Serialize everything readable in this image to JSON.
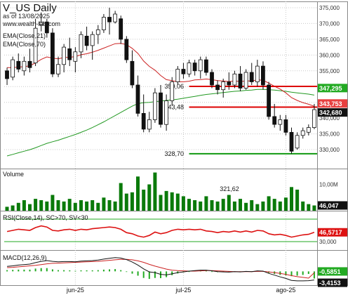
{
  "header": {
    "title": "V_US Daily",
    "asof": "as of 13/08/2025",
    "site": "www.wealth-lab.com"
  },
  "colors": {
    "ema21": "#cc2222",
    "ema70": "#229922",
    "candle_up": "#ffffff",
    "candle_down": "#111111",
    "level_red": "#dd0000",
    "level_green": "#119911",
    "volume": "#0a7a0a",
    "rsi": "#dd1111",
    "macd_line": "#111111",
    "signal_line": "#cc2222",
    "histogram": "#22aa22",
    "badge_ema21": "#e84040",
    "badge_ema70": "#22aa22",
    "badge_price": "#111111"
  },
  "chart_data": [
    {
      "type": "candlestick",
      "name": "price",
      "ylim": [
        324,
        377
      ],
      "yticks": [
        330,
        335,
        340,
        345,
        350,
        355,
        360,
        365,
        370,
        375
      ],
      "ytick_labels": [
        "330,000",
        "335,000",
        "340,000",
        "345,000",
        "350,000",
        "355,000",
        "360,000",
        "365,000",
        "370,000",
        "375,000"
      ],
      "indicators": [
        "EMA(Close,21)",
        "EMA(Close,70)"
      ],
      "last_values": {
        "ema70": "347,295",
        "ema21": "343,753",
        "close": "342,680"
      },
      "levels": [
        {
          "value": 350.06,
          "label": "350,06",
          "color": "red",
          "from_bar": 32
        },
        {
          "value": 343.48,
          "label": "343,48",
          "color": "red",
          "from_bar": 32
        },
        {
          "value": 328.7,
          "label": "328,70",
          "color": "green",
          "from_bar": 32
        }
      ],
      "bars": [
        {
          "o": 355.0,
          "h": 356.0,
          "l": 350.5,
          "c": 352.5
        },
        {
          "o": 353.0,
          "h": 359.5,
          "l": 352.0,
          "c": 358.5
        },
        {
          "o": 358.0,
          "h": 360.5,
          "l": 354.5,
          "c": 355.5
        },
        {
          "o": 355.0,
          "h": 359.5,
          "l": 353.5,
          "c": 358.0
        },
        {
          "o": 358.0,
          "h": 362.0,
          "l": 354.5,
          "c": 356.0
        },
        {
          "o": 357.5,
          "h": 371.5,
          "l": 356.5,
          "c": 368.5
        },
        {
          "o": 369.5,
          "h": 373.5,
          "l": 367.5,
          "c": 370.5
        },
        {
          "o": 370.5,
          "h": 371.5,
          "l": 365.5,
          "c": 367.0
        },
        {
          "o": 367.0,
          "h": 368.5,
          "l": 353.0,
          "c": 354.0
        },
        {
          "o": 354.0,
          "h": 359.5,
          "l": 353.0,
          "c": 357.0
        },
        {
          "o": 357.0,
          "h": 363.5,
          "l": 354.5,
          "c": 362.5
        },
        {
          "o": 362.0,
          "h": 365.5,
          "l": 356.5,
          "c": 358.5
        },
        {
          "o": 358.0,
          "h": 362.5,
          "l": 354.5,
          "c": 361.0
        },
        {
          "o": 361.0,
          "h": 367.5,
          "l": 359.0,
          "c": 366.5
        },
        {
          "o": 366.0,
          "h": 369.0,
          "l": 361.5,
          "c": 363.0
        },
        {
          "o": 363.0,
          "h": 367.5,
          "l": 358.5,
          "c": 366.5
        },
        {
          "o": 366.5,
          "h": 369.5,
          "l": 363.5,
          "c": 368.0
        },
        {
          "o": 368.0,
          "h": 373.0,
          "l": 367.0,
          "c": 372.0
        },
        {
          "o": 372.0,
          "h": 375.0,
          "l": 366.5,
          "c": 370.5
        },
        {
          "o": 370.5,
          "h": 374.0,
          "l": 370.0,
          "c": 373.0
        },
        {
          "o": 371.5,
          "h": 372.5,
          "l": 363.5,
          "c": 365.0
        },
        {
          "o": 365.0,
          "h": 366.0,
          "l": 357.5,
          "c": 358.5
        },
        {
          "o": 358.0,
          "h": 361.5,
          "l": 349.5,
          "c": 350.5
        },
        {
          "o": 350.5,
          "h": 353.5,
          "l": 340.5,
          "c": 341.5
        },
        {
          "o": 341.5,
          "h": 347.5,
          "l": 335.5,
          "c": 336.5
        },
        {
          "o": 336.5,
          "h": 342.0,
          "l": 335.5,
          "c": 339.5
        },
        {
          "o": 339.5,
          "h": 349.5,
          "l": 338.5,
          "c": 348.0
        },
        {
          "o": 348.0,
          "h": 350.5,
          "l": 337.0,
          "c": 338.0
        },
        {
          "o": 338.0,
          "h": 347.5,
          "l": 336.0,
          "c": 345.5
        },
        {
          "o": 345.5,
          "h": 353.0,
          "l": 344.0,
          "c": 351.5
        },
        {
          "o": 351.5,
          "h": 356.5,
          "l": 350.5,
          "c": 355.5
        },
        {
          "o": 355.5,
          "h": 357.5,
          "l": 352.5,
          "c": 354.0
        },
        {
          "o": 354.0,
          "h": 358.5,
          "l": 353.0,
          "c": 357.5
        },
        {
          "o": 357.5,
          "h": 358.5,
          "l": 353.5,
          "c": 355.0
        },
        {
          "o": 355.0,
          "h": 359.5,
          "l": 352.5,
          "c": 358.5
        },
        {
          "o": 358.5,
          "h": 359.5,
          "l": 353.5,
          "c": 354.5
        },
        {
          "o": 354.5,
          "h": 355.5,
          "l": 349.5,
          "c": 350.5
        },
        {
          "o": 350.5,
          "h": 352.0,
          "l": 347.5,
          "c": 349.0
        },
        {
          "o": 349.0,
          "h": 352.5,
          "l": 346.5,
          "c": 351.5
        },
        {
          "o": 351.5,
          "h": 354.5,
          "l": 349.0,
          "c": 350.5
        },
        {
          "o": 350.5,
          "h": 355.0,
          "l": 349.5,
          "c": 354.0
        },
        {
          "o": 354.0,
          "h": 356.5,
          "l": 348.5,
          "c": 349.5
        },
        {
          "o": 349.5,
          "h": 355.5,
          "l": 349.0,
          "c": 354.5
        },
        {
          "o": 354.5,
          "h": 357.5,
          "l": 350.5,
          "c": 351.5
        },
        {
          "o": 351.5,
          "h": 358.5,
          "l": 350.0,
          "c": 356.5
        },
        {
          "o": 356.5,
          "h": 358.0,
          "l": 349.0,
          "c": 350.5
        },
        {
          "o": 350.5,
          "h": 351.5,
          "l": 339.5,
          "c": 340.5
        },
        {
          "o": 340.5,
          "h": 344.5,
          "l": 337.0,
          "c": 338.0
        },
        {
          "o": 338.0,
          "h": 341.0,
          "l": 336.0,
          "c": 339.5
        },
        {
          "o": 339.5,
          "h": 341.0,
          "l": 334.5,
          "c": 335.5
        },
        {
          "o": 335.5,
          "h": 337.0,
          "l": 328.7,
          "c": 329.5
        },
        {
          "o": 330.5,
          "h": 335.5,
          "l": 330.0,
          "c": 334.5
        },
        {
          "o": 334.5,
          "h": 337.0,
          "l": 333.5,
          "c": 336.0
        },
        {
          "o": 335.5,
          "h": 338.0,
          "l": 334.5,
          "c": 337.0
        },
        {
          "o": 337.0,
          "h": 344.5,
          "l": 336.5,
          "c": 342.68
        }
      ],
      "ema21": [
        356.0,
        356.0,
        356.2,
        356.3,
        356.6,
        357.5,
        358.6,
        359.4,
        359.0,
        358.8,
        359.2,
        359.3,
        359.5,
        360.1,
        360.4,
        360.9,
        361.5,
        362.2,
        362.9,
        363.6,
        363.7,
        363.3,
        362.1,
        360.5,
        358.1,
        356.4,
        355.2,
        353.5,
        352.2,
        351.9,
        351.5,
        351.5,
        351.7,
        352.1,
        352.2,
        352.4,
        352.2,
        351.9,
        351.8,
        351.6,
        351.8,
        351.6,
        351.8,
        351.8,
        352.1,
        352.0,
        351.1,
        350.1,
        349.2,
        348.0,
        346.5,
        345.6,
        344.9,
        344.4,
        343.75
      ],
      "ema70": [
        328.0,
        328.5,
        329.0,
        329.5,
        330.0,
        330.6,
        331.3,
        332.0,
        332.5,
        333.0,
        333.6,
        334.2,
        334.8,
        335.5,
        336.2,
        337.0,
        337.9,
        338.8,
        339.8,
        340.8,
        341.8,
        342.8,
        343.8,
        344.6,
        344.9,
        345.0,
        345.2,
        345.4,
        345.6,
        345.8,
        346.0,
        346.3,
        346.6,
        346.9,
        347.2,
        347.5,
        347.7,
        347.9,
        348.1,
        348.3,
        348.5,
        348.6,
        348.8,
        348.9,
        349.1,
        349.1,
        349.0,
        348.9,
        348.7,
        348.5,
        348.2,
        348.0,
        347.8,
        347.6,
        347.3
      ]
    },
    {
      "type": "bar",
      "name": "volume",
      "title": "Volume",
      "unit": "M",
      "ylim": [
        0,
        16
      ],
      "ytick_labels": [
        "10,00M"
      ],
      "annotation": "321,62",
      "last_value": "46,047",
      "values": [
        1.5,
        2.0,
        3.0,
        4.0,
        2.5,
        4.5,
        4.0,
        3.5,
        6.0,
        4.0,
        3.5,
        4.5,
        3.0,
        4.0,
        3.5,
        4.0,
        3.0,
        5.0,
        4.0,
        3.5,
        10.5,
        6.5,
        7.0,
        13.0,
        8.0,
        10.0,
        14.5,
        6.0,
        7.5,
        7.0,
        6.5,
        5.5,
        4.5,
        4.0,
        3.5,
        5.5,
        4.0,
        3.5,
        4.5,
        6.0,
        3.5,
        4.5,
        3.0,
        4.0,
        2.5,
        3.5,
        5.5,
        4.5,
        3.5,
        5.0,
        9.0,
        8.0,
        3.5,
        2.5,
        2.0
      ]
    },
    {
      "type": "line",
      "name": "rsi",
      "title": "RSI(Close,14), SC>70, SV<30",
      "ylim": [
        15,
        85
      ],
      "levels": [
        70,
        30
      ],
      "ytick_labels": [
        "30,000"
      ],
      "last_value": "46,5717",
      "values": [
        48,
        50,
        52,
        51,
        50,
        55,
        58,
        56,
        50,
        49,
        51,
        52,
        50,
        52,
        51,
        53,
        54,
        55,
        56,
        55,
        52,
        46,
        44,
        40,
        38,
        41,
        47,
        44,
        46,
        50,
        52,
        51,
        52,
        51,
        52,
        49,
        48,
        46,
        48,
        47,
        49,
        47,
        49,
        47,
        50,
        49,
        44,
        42,
        43,
        41,
        38,
        40,
        42,
        43,
        46.57
      ]
    },
    {
      "type": "line",
      "name": "macd",
      "title": "MACD(12,26,9)",
      "ylim": [
        -5.5,
        8.5
      ],
      "last_values": {
        "signal": "-0,5851",
        "macd": "-3,4153"
      },
      "macd": [
        2.0,
        2.2,
        2.5,
        2.7,
        2.9,
        3.5,
        4.0,
        4.3,
        4.0,
        3.8,
        3.9,
        3.9,
        3.8,
        4.1,
        4.2,
        4.3,
        4.5,
        4.9,
        5.2,
        5.5,
        5.3,
        4.7,
        3.7,
        2.5,
        1.0,
        -0.2,
        -0.5,
        -1.2,
        -1.4,
        -1.0,
        -0.5,
        -0.2,
        0.1,
        0.3,
        0.5,
        0.5,
        0.2,
        -0.1,
        -0.2,
        -0.3,
        -0.1,
        -0.2,
        0.0,
        -0.1,
        0.2,
        0.1,
        -0.8,
        -1.5,
        -2.2,
        -2.8,
        -3.6,
        -3.8,
        -3.8,
        -3.7,
        -3.42
      ],
      "signal": [
        1.5,
        1.6,
        1.8,
        2.0,
        2.2,
        2.4,
        2.7,
        3.0,
        3.2,
        3.3,
        3.4,
        3.5,
        3.6,
        3.7,
        3.8,
        3.9,
        4.0,
        4.2,
        4.4,
        4.6,
        4.8,
        4.8,
        4.6,
        4.2,
        3.6,
        2.8,
        2.1,
        1.5,
        0.9,
        0.5,
        0.3,
        0.2,
        0.1,
        0.1,
        0.2,
        0.3,
        0.3,
        0.2,
        0.1,
        0.0,
        -0.1,
        -0.1,
        -0.1,
        -0.1,
        0.0,
        0.0,
        -0.2,
        -0.5,
        -0.8,
        -1.2,
        -1.7,
        -2.1,
        -2.4,
        -2.7,
        -0.585
      ]
    }
  ],
  "x_axis": {
    "labels": [
      {
        "text": "jun-25",
        "bar": 12
      },
      {
        "text": "jul-25",
        "bar": 31
      },
      {
        "text": "ago-25",
        "bar": 49
      }
    ]
  }
}
